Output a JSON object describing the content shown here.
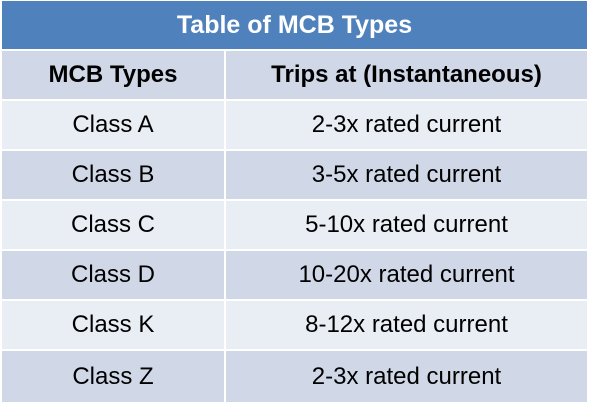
{
  "title": "Table of MCB Types",
  "columns": [
    "MCB Types",
    "Trips at (Instantaneous)"
  ],
  "rows": [
    {
      "type": "Class A",
      "trips": "2-3x rated current"
    },
    {
      "type": "Class B",
      "trips": "3-5x rated current"
    },
    {
      "type": "Class C",
      "trips": "5-10x rated current"
    },
    {
      "type": "Class D",
      "trips": "10-20x rated current"
    },
    {
      "type": "Class K",
      "trips": "8-12x rated current"
    },
    {
      "type": "Class Z",
      "trips": "2-3x rated current"
    }
  ],
  "colors": {
    "title_bg": "#4f81bd",
    "title_text": "#ffffff",
    "row_light": "#e9edf4",
    "row_dark": "#d0d8e8"
  }
}
